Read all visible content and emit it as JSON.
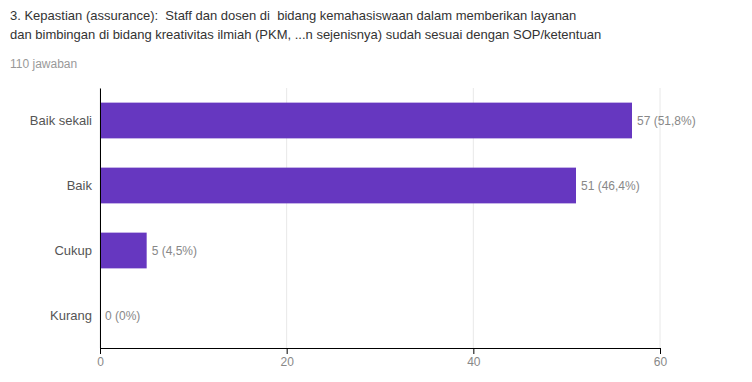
{
  "chart_data": {
    "type": "bar",
    "orientation": "horizontal",
    "title": [
      "3. Kepastian (assurance):  Staff dan dosen di  bidang kemahasiswaan dalam memberikan layanan",
      "dan bimbingan di bidang kreativitas ilmiah (PKM, ...n sejenisnya) sudah sesuai dengan SOP/ketentuan"
    ],
    "subtitle": "110 jawaban",
    "categories": [
      "Baik sekali",
      "Baik",
      "Cukup",
      "Kurang"
    ],
    "values": [
      57,
      51,
      5,
      0
    ],
    "value_labels": [
      "57 (51,8%)",
      "51 (46,4%)",
      "5 (4,5%)",
      "0 (0%)"
    ],
    "data_labels": true,
    "color": "#6637c0",
    "xlim": [
      0,
      60
    ],
    "xticks": [
      0,
      20,
      40,
      60
    ],
    "grid": true
  }
}
